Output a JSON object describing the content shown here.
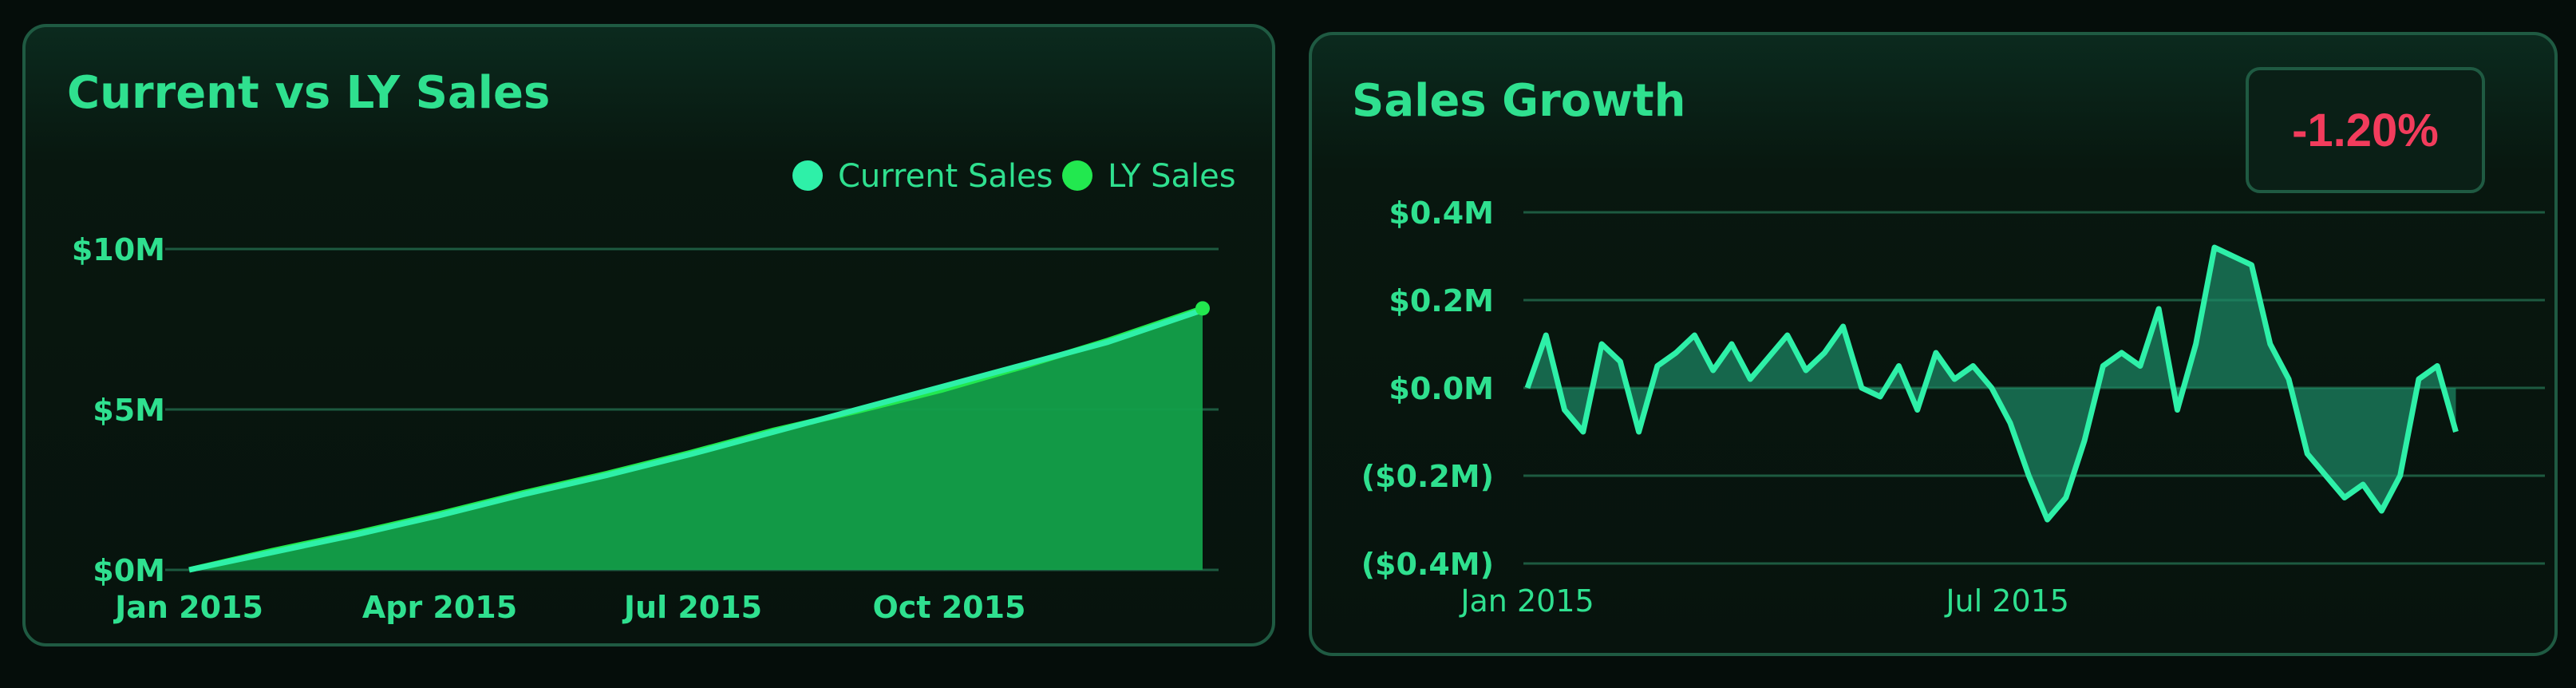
{
  "chart_data": [
    {
      "type": "area",
      "title": "Current vs LY Sales",
      "legend_position": "top-right",
      "grid": true,
      "x_ticks": [
        "Jan 2015",
        "Apr 2015",
        "Jul 2015",
        "Oct 2015"
      ],
      "y_ticks": [
        "$0M",
        "$5M",
        "$10M"
      ],
      "ylim": [
        0,
        10
      ],
      "y_unit": "$M",
      "x_range": [
        "2015-01-01",
        "2015-12-31"
      ],
      "series": [
        {
          "name": "Current Sales",
          "color": "#2ef0a8",
          "x": [
            "2015-01-01",
            "2015-01-31",
            "2015-03-02",
            "2015-04-01",
            "2015-05-01",
            "2015-05-31",
            "2015-06-30",
            "2015-07-30",
            "2015-08-29",
            "2015-09-28",
            "2015-10-28",
            "2015-11-27",
            "2015-12-31"
          ],
          "y": [
            0.0,
            0.55,
            1.1,
            1.7,
            2.35,
            2.95,
            3.6,
            4.3,
            5.0,
            5.7,
            6.4,
            7.1,
            8.1
          ]
        },
        {
          "name": "LY Sales",
          "color": "#22e84f",
          "x": [
            "2015-01-01",
            "2015-01-31",
            "2015-03-02",
            "2015-04-01",
            "2015-05-01",
            "2015-05-31",
            "2015-06-30",
            "2015-07-30",
            "2015-08-29",
            "2015-09-28",
            "2015-10-28",
            "2015-11-27",
            "2015-12-31"
          ],
          "y": [
            0.0,
            0.6,
            1.15,
            1.75,
            2.4,
            3.0,
            3.65,
            4.35,
            4.95,
            5.6,
            6.35,
            7.15,
            8.15
          ]
        }
      ]
    },
    {
      "type": "line",
      "title": "Sales Growth",
      "badge": "-1.20%",
      "grid": true,
      "x_ticks": [
        "Jan 2015",
        "Jul 2015"
      ],
      "y_ticks": [
        "$0.4M",
        "$0.2M",
        "$0.0M",
        "($0.2M)",
        "($0.4M)"
      ],
      "ylim": [
        -0.4,
        0.4
      ],
      "y_unit": "$M",
      "x_range": [
        "2015-01-01",
        "2015-12-31"
      ],
      "series": [
        {
          "color": "#2ef0a8",
          "x": [
            "2015-01-01",
            "2015-01-08",
            "2015-01-15",
            "2015-01-22",
            "2015-01-29",
            "2015-02-05",
            "2015-02-12",
            "2015-02-19",
            "2015-02-26",
            "2015-03-05",
            "2015-03-12",
            "2015-03-19",
            "2015-03-26",
            "2015-04-02",
            "2015-04-09",
            "2015-04-16",
            "2015-04-23",
            "2015-04-30",
            "2015-05-07",
            "2015-05-14",
            "2015-05-21",
            "2015-05-28",
            "2015-06-04",
            "2015-06-11",
            "2015-06-18",
            "2015-06-25",
            "2015-07-02",
            "2015-07-09",
            "2015-07-16",
            "2015-07-23",
            "2015-07-30",
            "2015-08-06",
            "2015-08-13",
            "2015-08-20",
            "2015-08-27",
            "2015-09-03",
            "2015-09-10",
            "2015-09-17",
            "2015-09-24",
            "2015-10-01",
            "2015-10-08",
            "2015-10-15",
            "2015-10-22",
            "2015-10-29",
            "2015-11-05",
            "2015-11-12",
            "2015-11-19",
            "2015-11-26",
            "2015-12-03",
            "2015-12-10",
            "2015-12-17"
          ],
          "y": [
            0.0,
            0.12,
            -0.05,
            -0.1,
            0.1,
            0.06,
            -0.1,
            0.05,
            0.08,
            0.12,
            0.04,
            0.1,
            0.02,
            0.07,
            0.12,
            0.04,
            0.08,
            0.14,
            0.0,
            -0.02,
            0.05,
            -0.05,
            0.08,
            0.02,
            0.05,
            0.0,
            -0.08,
            -0.2,
            -0.3,
            -0.25,
            -0.12,
            0.05,
            0.08,
            0.05,
            0.18,
            -0.05,
            0.1,
            0.32,
            0.3,
            0.28,
            0.1,
            0.02,
            -0.15,
            -0.2,
            -0.25,
            -0.22,
            -0.28,
            -0.2,
            0.02,
            0.05,
            -0.1
          ]
        }
      ]
    }
  ]
}
